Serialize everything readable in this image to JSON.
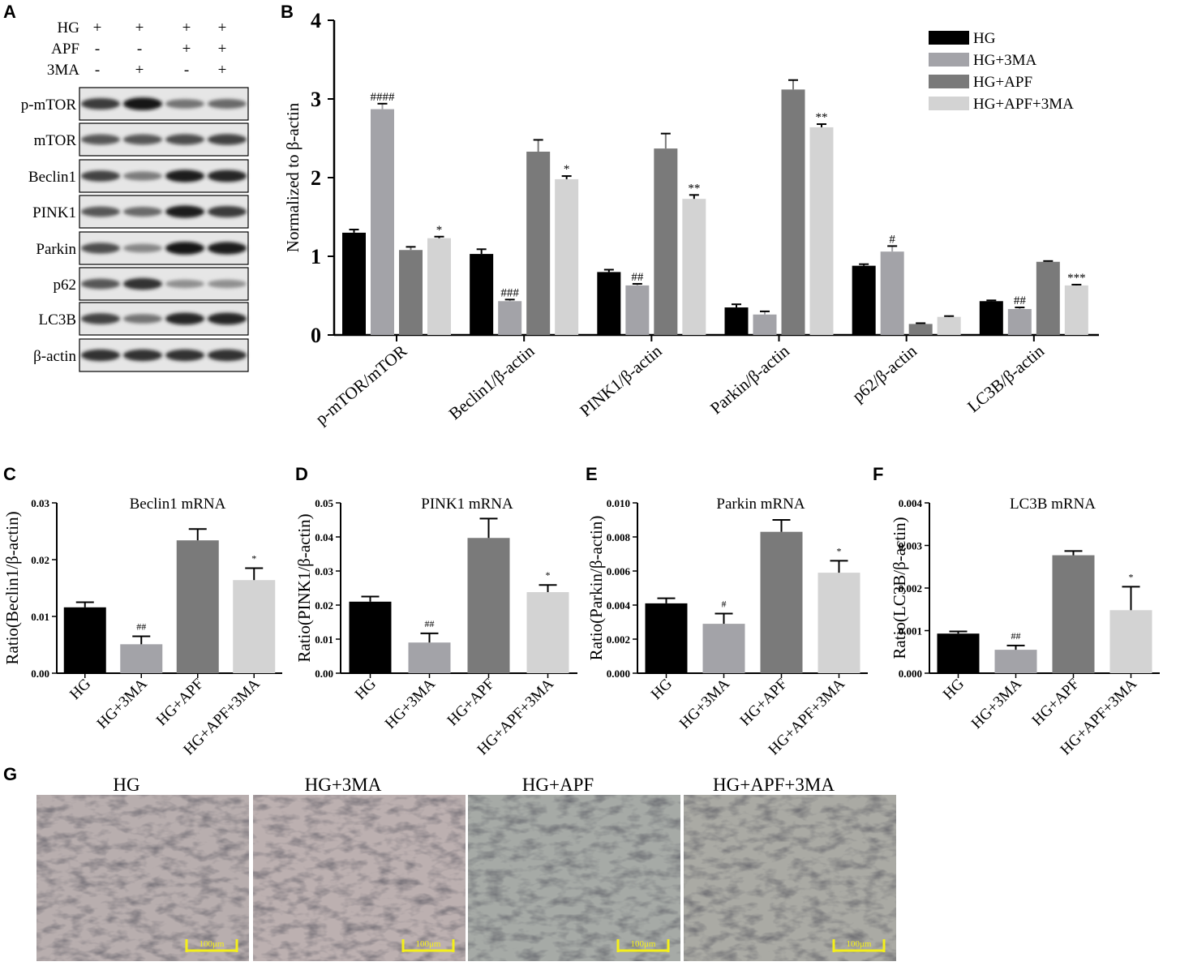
{
  "panels": {
    "A": "A",
    "B": "B",
    "C": "C",
    "D": "D",
    "E": "E",
    "F": "F",
    "G": "G"
  },
  "blot": {
    "conditions": [
      {
        "label": "HG",
        "values": [
          "+",
          "+",
          "+",
          "+"
        ]
      },
      {
        "label": "APF",
        "values": [
          "-",
          "-",
          "+",
          "+"
        ]
      },
      {
        "label": "3MA",
        "values": [
          "-",
          "+",
          "-",
          "+"
        ]
      }
    ],
    "bands": [
      {
        "label": "p-mTOR",
        "intensity": [
          0.75,
          0.95,
          0.45,
          0.5
        ]
      },
      {
        "label": "mTOR",
        "intensity": [
          0.6,
          0.6,
          0.65,
          0.7
        ]
      },
      {
        "label": "Beclin1",
        "intensity": [
          0.7,
          0.4,
          0.9,
          0.85
        ]
      },
      {
        "label": "PINK1",
        "intensity": [
          0.6,
          0.5,
          0.9,
          0.75
        ]
      },
      {
        "label": "Parkin",
        "intensity": [
          0.65,
          0.35,
          0.95,
          0.9
        ]
      },
      {
        "label": "p62",
        "intensity": [
          0.6,
          0.8,
          0.3,
          0.3
        ]
      },
      {
        "label": "LC3B",
        "intensity": [
          0.7,
          0.45,
          0.85,
          0.85
        ]
      },
      {
        "label": "β-actin",
        "intensity": [
          0.8,
          0.8,
          0.8,
          0.8
        ]
      }
    ]
  },
  "colors": {
    "HG": "#000000",
    "HG+3MA": "#a3a3a8",
    "HG+APF": "#7a7a7a",
    "HG+APF+3MA": "#d3d3d3"
  },
  "chart_data": [
    {
      "type": "bar",
      "ylabel": "Normalized to β-actin",
      "ylim": [
        0,
        4
      ],
      "yticks": [
        "0",
        "1",
        "2",
        "3",
        "4"
      ],
      "categories": [
        "p-mTOR/mTOR",
        "Beclin1/β-actin",
        "PINK1/β-actin",
        "Parkin/β-actin",
        "p62/β-actin",
        "LC3B/β-actin"
      ],
      "legend_position": "top-right",
      "series": [
        {
          "name": "HG",
          "values": [
            1.3,
            1.03,
            0.8,
            0.35,
            0.88,
            0.43
          ],
          "errors": [
            0.04,
            0.06,
            0.03,
            0.04,
            0.02,
            0.01
          ]
        },
        {
          "name": "HG+3MA",
          "values": [
            2.87,
            0.43,
            0.63,
            0.26,
            1.06,
            0.33
          ],
          "errors": [
            0.07,
            0.02,
            0.02,
            0.04,
            0.07,
            0.02
          ]
        },
        {
          "name": "HG+APF",
          "values": [
            1.08,
            2.33,
            2.37,
            3.12,
            0.14,
            0.93
          ],
          "errors": [
            0.04,
            0.15,
            0.19,
            0.12,
            0.01,
            0.01
          ]
        },
        {
          "name": "HG+APF+3MA",
          "values": [
            1.23,
            1.98,
            1.73,
            2.64,
            0.23,
            0.63
          ],
          "errors": [
            0.02,
            0.04,
            0.05,
            0.04,
            0.01,
            0.01
          ]
        }
      ],
      "annotations": [
        [
          "",
          "####",
          "",
          "*"
        ],
        [
          "",
          "###",
          "",
          "*"
        ],
        [
          "",
          "##",
          "",
          "**"
        ],
        [
          "",
          "",
          "",
          "**"
        ],
        [
          "",
          "#",
          "",
          ""
        ],
        [
          "",
          "##",
          "",
          "***"
        ]
      ]
    },
    {
      "type": "bar",
      "title": "Beclin1 mRNA",
      "ylabel": "Ratio(Beclin1/β-actin)",
      "ylim": [
        0,
        0.03
      ],
      "yticks": [
        "0.00",
        "0.01",
        "0.02",
        "0.03"
      ],
      "categories": [
        "HG",
        "HG+3MA",
        "HG+APF",
        "HG+APF+3MA"
      ],
      "values": [
        0.0116,
        0.0051,
        0.0234,
        0.0164
      ],
      "errors": [
        0.0009,
        0.0014,
        0.002,
        0.0021
      ],
      "annotations": [
        "",
        "##",
        "",
        "*"
      ]
    },
    {
      "type": "bar",
      "title": "PINK1 mRNA",
      "ylabel": "Ratio(PINK1/β-actin)",
      "ylim": [
        0,
        0.05
      ],
      "yticks": [
        "0.00",
        "0.01",
        "0.02",
        "0.03",
        "0.04",
        "0.05"
      ],
      "categories": [
        "HG",
        "HG+3MA",
        "HG+APF",
        "HG+APF+3MA"
      ],
      "values": [
        0.021,
        0.009,
        0.0397,
        0.0238
      ],
      "errors": [
        0.0015,
        0.0027,
        0.0057,
        0.0021
      ],
      "annotations": [
        "",
        "##",
        "",
        "*"
      ]
    },
    {
      "type": "bar",
      "title": "Parkin mRNA",
      "ylabel": "Ratio(Parkin/β-actin)",
      "ylim": [
        0,
        0.01
      ],
      "yticks": [
        "0.000",
        "0.002",
        "0.004",
        "0.006",
        "0.008",
        "0.010"
      ],
      "categories": [
        "HG",
        "HG+3MA",
        "HG+APF",
        "HG+APF+3MA"
      ],
      "values": [
        0.0041,
        0.0029,
        0.0083,
        0.0059
      ],
      "errors": [
        0.0003,
        0.0006,
        0.0007,
        0.0007
      ],
      "annotations": [
        "",
        "#",
        "",
        "*"
      ]
    },
    {
      "type": "bar",
      "title": "LC3B mRNA",
      "ylabel": "Ratio(LC3B/β-actin)",
      "ylim": [
        0,
        0.004
      ],
      "yticks": [
        "0.000",
        "0.001",
        "0.002",
        "0.003",
        "0.004"
      ],
      "categories": [
        "HG",
        "HG+3MA",
        "HG+APF",
        "HG+APF+3MA"
      ],
      "values": [
        0.00093,
        0.00055,
        0.00277,
        0.00148
      ],
      "errors": [
        5e-05,
        0.0001,
        0.0001,
        0.00055
      ],
      "annotations": [
        "",
        "##",
        "",
        "*"
      ]
    }
  ],
  "micrographs": [
    {
      "label": "HG",
      "scale": "100μm",
      "tone": "#b8aeae"
    },
    {
      "label": "HG+3MA",
      "scale": "100μm",
      "tone": "#bcb0b0"
    },
    {
      "label": "HG+APF",
      "scale": "100μm",
      "tone": "#a6aaa6"
    },
    {
      "label": "HG+APF+3MA",
      "scale": "100μm",
      "tone": "#aaaaa4"
    }
  ]
}
